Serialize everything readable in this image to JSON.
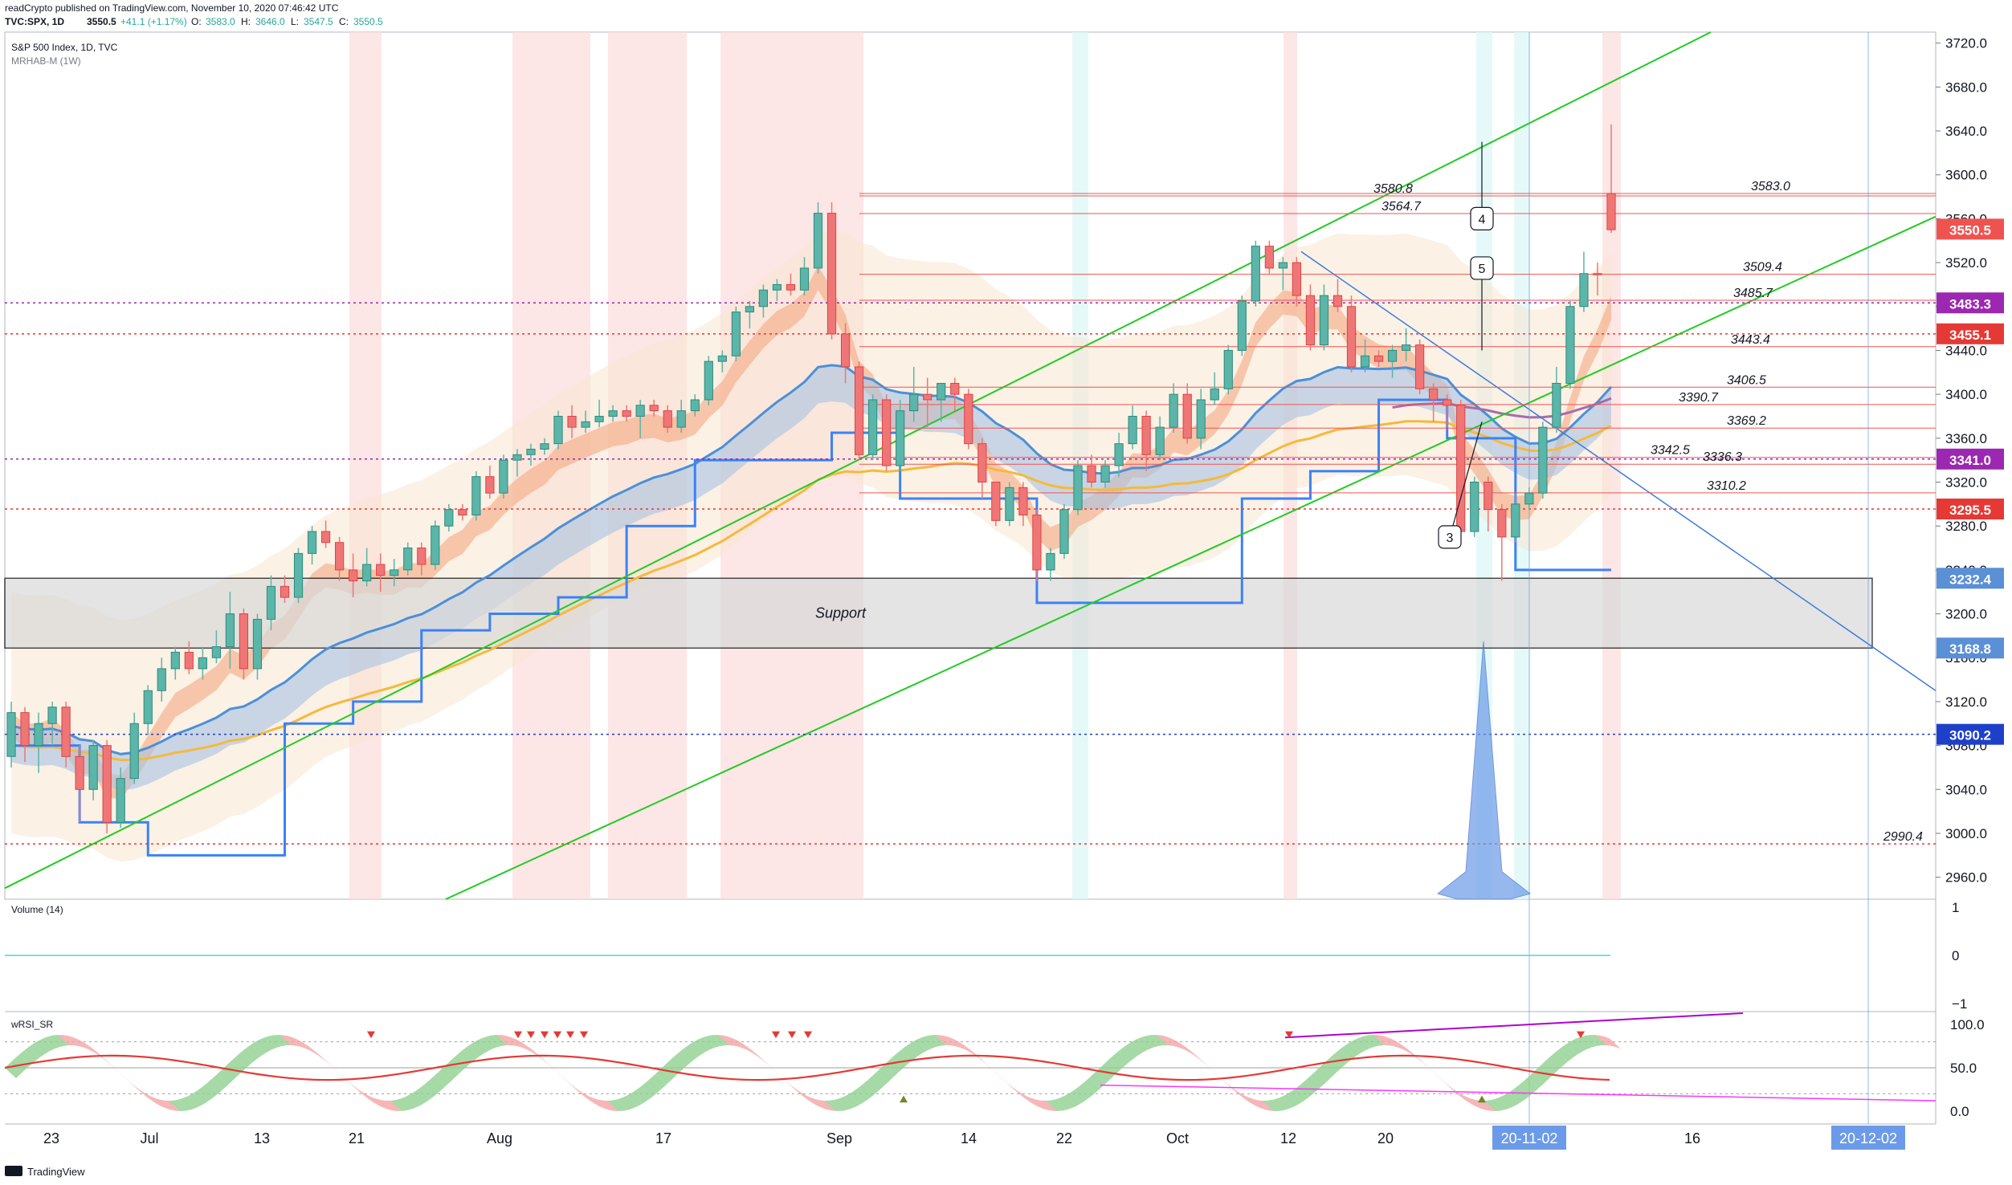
{
  "header": {
    "line1": "readCrypto published on TradingView.com, November 10, 2020 07:46:42 UTC",
    "symbol": "TVC:SPX, 1D",
    "last": "3550.5",
    "change": "+41.1 (+1.17%)",
    "o_label": "O:",
    "o_value": "3583.0",
    "h_label": "H:",
    "h_value": "3646.0",
    "l_label": "L:",
    "l_value": "3547.5",
    "c_label": "C:",
    "c_value": "3550.5"
  },
  "chart_data": {
    "type": "candlestick",
    "title": "S&P 500 Index, 1D, TVC",
    "indicator_label": "MRHAB-M (1W)",
    "ylim": [
      2940,
      3730
    ],
    "y_ticks": [
      "3720.0",
      "3680.0",
      "3640.0",
      "3600.0",
      "3560.0",
      "3520.0",
      "3480.0",
      "3440.0",
      "3400.0",
      "3360.0",
      "3320.0",
      "3280.0",
      "3240.0",
      "3200.0",
      "3160.0",
      "3120.0",
      "3080.0",
      "3040.0",
      "3000.0",
      "2960.0"
    ],
    "x_ticks": [
      "23",
      "Jul",
      "13",
      "21",
      "Aug",
      "17",
      "Sep",
      "14",
      "22",
      "Oct",
      "12",
      "20",
      "20-11-02",
      "16",
      "20-12-02"
    ],
    "candles": [
      {
        "o": 3070,
        "h": 3120,
        "l": 3060,
        "c": 3110
      },
      {
        "o": 3110,
        "h": 3115,
        "l": 3065,
        "c": 3080
      },
      {
        "o": 3080,
        "h": 3110,
        "l": 3055,
        "c": 3100
      },
      {
        "o": 3100,
        "h": 3120,
        "l": 3080,
        "c": 3115
      },
      {
        "o": 3115,
        "h": 3120,
        "l": 3060,
        "c": 3070
      },
      {
        "o": 3070,
        "h": 3080,
        "l": 3010,
        "c": 3040
      },
      {
        "o": 3040,
        "h": 3085,
        "l": 3030,
        "c": 3080
      },
      {
        "o": 3080,
        "h": 3085,
        "l": 3000,
        "c": 3010
      },
      {
        "o": 3010,
        "h": 3060,
        "l": 3005,
        "c": 3050
      },
      {
        "o": 3050,
        "h": 3110,
        "l": 3045,
        "c": 3100
      },
      {
        "o": 3100,
        "h": 3135,
        "l": 3090,
        "c": 3130
      },
      {
        "o": 3130,
        "h": 3160,
        "l": 3120,
        "c": 3150
      },
      {
        "o": 3150,
        "h": 3170,
        "l": 3140,
        "c": 3165
      },
      {
        "o": 3165,
        "h": 3175,
        "l": 3145,
        "c": 3150
      },
      {
        "o": 3150,
        "h": 3170,
        "l": 3140,
        "c": 3160
      },
      {
        "o": 3160,
        "h": 3185,
        "l": 3155,
        "c": 3170
      },
      {
        "o": 3170,
        "h": 3220,
        "l": 3150,
        "c": 3200
      },
      {
        "o": 3200,
        "h": 3205,
        "l": 3140,
        "c": 3150
      },
      {
        "o": 3150,
        "h": 3200,
        "l": 3140,
        "c": 3195
      },
      {
        "o": 3195,
        "h": 3235,
        "l": 3185,
        "c": 3225
      },
      {
        "o": 3225,
        "h": 3235,
        "l": 3210,
        "c": 3215
      },
      {
        "o": 3215,
        "h": 3260,
        "l": 3210,
        "c": 3255
      },
      {
        "o": 3255,
        "h": 3280,
        "l": 3245,
        "c": 3275
      },
      {
        "o": 3275,
        "h": 3285,
        "l": 3260,
        "c": 3265
      },
      {
        "o": 3265,
        "h": 3270,
        "l": 3230,
        "c": 3240
      },
      {
        "o": 3240,
        "h": 3255,
        "l": 3215,
        "c": 3230
      },
      {
        "o": 3230,
        "h": 3260,
        "l": 3225,
        "c": 3245
      },
      {
        "o": 3245,
        "h": 3255,
        "l": 3220,
        "c": 3235
      },
      {
        "o": 3235,
        "h": 3250,
        "l": 3225,
        "c": 3240
      },
      {
        "o": 3240,
        "h": 3265,
        "l": 3235,
        "c": 3260
      },
      {
        "o": 3260,
        "h": 3265,
        "l": 3235,
        "c": 3245
      },
      {
        "o": 3245,
        "h": 3285,
        "l": 3240,
        "c": 3280
      },
      {
        "o": 3280,
        "h": 3300,
        "l": 3275,
        "c": 3295
      },
      {
        "o": 3295,
        "h": 3300,
        "l": 3285,
        "c": 3290
      },
      {
        "o": 3290,
        "h": 3330,
        "l": 3285,
        "c": 3325
      },
      {
        "o": 3325,
        "h": 3335,
        "l": 3305,
        "c": 3310
      },
      {
        "o": 3310,
        "h": 3345,
        "l": 3305,
        "c": 3340
      },
      {
        "o": 3340,
        "h": 3350,
        "l": 3325,
        "c": 3345
      },
      {
        "o": 3345,
        "h": 3355,
        "l": 3335,
        "c": 3350
      },
      {
        "o": 3350,
        "h": 3360,
        "l": 3345,
        "c": 3355
      },
      {
        "o": 3355,
        "h": 3385,
        "l": 3350,
        "c": 3380
      },
      {
        "o": 3380,
        "h": 3390,
        "l": 3360,
        "c": 3370
      },
      {
        "o": 3370,
        "h": 3385,
        "l": 3365,
        "c": 3375
      },
      {
        "o": 3375,
        "h": 3395,
        "l": 3370,
        "c": 3380
      },
      {
        "o": 3380,
        "h": 3390,
        "l": 3375,
        "c": 3385
      },
      {
        "o": 3385,
        "h": 3390,
        "l": 3375,
        "c": 3380
      },
      {
        "o": 3380,
        "h": 3395,
        "l": 3360,
        "c": 3390
      },
      {
        "o": 3390,
        "h": 3395,
        "l": 3380,
        "c": 3385
      },
      {
        "o": 3385,
        "h": 3390,
        "l": 3365,
        "c": 3370
      },
      {
        "o": 3370,
        "h": 3395,
        "l": 3365,
        "c": 3385
      },
      {
        "o": 3385,
        "h": 3400,
        "l": 3380,
        "c": 3395
      },
      {
        "o": 3395,
        "h": 3435,
        "l": 3390,
        "c": 3430
      },
      {
        "o": 3430,
        "h": 3440,
        "l": 3420,
        "c": 3435
      },
      {
        "o": 3435,
        "h": 3480,
        "l": 3430,
        "c": 3475
      },
      {
        "o": 3475,
        "h": 3485,
        "l": 3460,
        "c": 3480
      },
      {
        "o": 3480,
        "h": 3500,
        "l": 3470,
        "c": 3495
      },
      {
        "o": 3495,
        "h": 3505,
        "l": 3485,
        "c": 3500
      },
      {
        "o": 3500,
        "h": 3510,
        "l": 3490,
        "c": 3495
      },
      {
        "o": 3495,
        "h": 3525,
        "l": 3490,
        "c": 3515
      },
      {
        "o": 3515,
        "h": 3575,
        "l": 3510,
        "c": 3565
      },
      {
        "o": 3565,
        "h": 3575,
        "l": 3450,
        "c": 3455
      },
      {
        "o": 3455,
        "h": 3465,
        "l": 3410,
        "c": 3425
      },
      {
        "o": 3425,
        "h": 3430,
        "l": 3340,
        "c": 3345
      },
      {
        "o": 3345,
        "h": 3400,
        "l": 3340,
        "c": 3395
      },
      {
        "o": 3395,
        "h": 3400,
        "l": 3330,
        "c": 3335
      },
      {
        "o": 3335,
        "h": 3395,
        "l": 3330,
        "c": 3385
      },
      {
        "o": 3385,
        "h": 3425,
        "l": 3375,
        "c": 3400
      },
      {
        "o": 3400,
        "h": 3415,
        "l": 3370,
        "c": 3395
      },
      {
        "o": 3395,
        "h": 3410,
        "l": 3375,
        "c": 3410
      },
      {
        "o": 3410,
        "h": 3415,
        "l": 3385,
        "c": 3400
      },
      {
        "o": 3400,
        "h": 3405,
        "l": 3350,
        "c": 3355
      },
      {
        "o": 3355,
        "h": 3360,
        "l": 3305,
        "c": 3320
      },
      {
        "o": 3320,
        "h": 3320,
        "l": 3280,
        "c": 3285
      },
      {
        "o": 3285,
        "h": 3320,
        "l": 3280,
        "c": 3315
      },
      {
        "o": 3315,
        "h": 3320,
        "l": 3280,
        "c": 3290
      },
      {
        "o": 3290,
        "h": 3295,
        "l": 3230,
        "c": 3240
      },
      {
        "o": 3240,
        "h": 3260,
        "l": 3230,
        "c": 3255
      },
      {
        "o": 3255,
        "h": 3300,
        "l": 3250,
        "c": 3295
      },
      {
        "o": 3295,
        "h": 3340,
        "l": 3290,
        "c": 3335
      },
      {
        "o": 3335,
        "h": 3345,
        "l": 3315,
        "c": 3320
      },
      {
        "o": 3320,
        "h": 3340,
        "l": 3315,
        "c": 3335
      },
      {
        "o": 3335,
        "h": 3365,
        "l": 3325,
        "c": 3355
      },
      {
        "o": 3355,
        "h": 3390,
        "l": 3350,
        "c": 3380
      },
      {
        "o": 3380,
        "h": 3385,
        "l": 3330,
        "c": 3345
      },
      {
        "o": 3345,
        "h": 3380,
        "l": 3340,
        "c": 3370
      },
      {
        "o": 3370,
        "h": 3410,
        "l": 3365,
        "c": 3400
      },
      {
        "o": 3400,
        "h": 3410,
        "l": 3355,
        "c": 3360
      },
      {
        "o": 3360,
        "h": 3405,
        "l": 3350,
        "c": 3395
      },
      {
        "o": 3395,
        "h": 3420,
        "l": 3390,
        "c": 3405
      },
      {
        "o": 3405,
        "h": 3445,
        "l": 3400,
        "c": 3440
      },
      {
        "o": 3440,
        "h": 3490,
        "l": 3435,
        "c": 3485
      },
      {
        "o": 3485,
        "h": 3540,
        "l": 3480,
        "c": 3535
      },
      {
        "o": 3535,
        "h": 3540,
        "l": 3510,
        "c": 3515
      },
      {
        "o": 3515,
        "h": 3525,
        "l": 3495,
        "c": 3520
      },
      {
        "o": 3520,
        "h": 3525,
        "l": 3480,
        "c": 3490
      },
      {
        "o": 3490,
        "h": 3500,
        "l": 3440,
        "c": 3445
      },
      {
        "o": 3445,
        "h": 3500,
        "l": 3440,
        "c": 3490
      },
      {
        "o": 3490,
        "h": 3505,
        "l": 3475,
        "c": 3480
      },
      {
        "o": 3480,
        "h": 3490,
        "l": 3420,
        "c": 3425
      },
      {
        "o": 3425,
        "h": 3450,
        "l": 3420,
        "c": 3435
      },
      {
        "o": 3435,
        "h": 3440,
        "l": 3425,
        "c": 3430
      },
      {
        "o": 3430,
        "h": 3445,
        "l": 3415,
        "c": 3440
      },
      {
        "o": 3440,
        "h": 3460,
        "l": 3430,
        "c": 3445
      },
      {
        "o": 3445,
        "h": 3450,
        "l": 3400,
        "c": 3405
      },
      {
        "o": 3405,
        "h": 3410,
        "l": 3375,
        "c": 3395
      },
      {
        "o": 3395,
        "h": 3400,
        "l": 3370,
        "c": 3390
      },
      {
        "o": 3390,
        "h": 3395,
        "l": 3265,
        "c": 3275
      },
      {
        "o": 3275,
        "h": 3325,
        "l": 3270,
        "c": 3320
      },
      {
        "o": 3320,
        "h": 3325,
        "l": 3275,
        "c": 3295
      },
      {
        "o": 3295,
        "h": 3300,
        "l": 3230,
        "c": 3270
      },
      {
        "o": 3270,
        "h": 3310,
        "l": 3265,
        "c": 3300
      },
      {
        "o": 3300,
        "h": 3315,
        "l": 3295,
        "c": 3310
      },
      {
        "o": 3310,
        "h": 3375,
        "l": 3305,
        "c": 3370
      },
      {
        "o": 3370,
        "h": 3425,
        "l": 3365,
        "c": 3410
      },
      {
        "o": 3410,
        "h": 3485,
        "l": 3405,
        "c": 3480
      },
      {
        "o": 3480,
        "h": 3530,
        "l": 3475,
        "c": 3510
      },
      {
        "o": 3510,
        "h": 3520,
        "l": 3490,
        "c": 3509
      },
      {
        "o": 3583,
        "h": 3646,
        "l": 3547,
        "c": 3550
      }
    ],
    "price_labels": [
      {
        "value": 3550.5,
        "text": "3550.5",
        "color": "#ef5350"
      },
      {
        "value": 3483.3,
        "text": "3483.3",
        "color": "#9c27b0"
      },
      {
        "value": 3455.1,
        "text": "3455.1",
        "color": "#e53935"
      },
      {
        "value": 3341.0,
        "text": "3341.0",
        "color": "#9c27b0"
      },
      {
        "value": 3295.5,
        "text": "3295.5",
        "color": "#e53935"
      },
      {
        "value": 3232.4,
        "text": "3232.4",
        "color": "#5b8fd6"
      },
      {
        "value": 3168.8,
        "text": "3168.8",
        "color": "#5b8fd6"
      },
      {
        "value": 3090.2,
        "text": "3090.2",
        "color": "#1e40c9"
      }
    ],
    "level_annotations": [
      {
        "value": 3580.8,
        "text": "3580.8"
      },
      {
        "value": 3564.7,
        "text": "3564.7"
      },
      {
        "value": 3583.0,
        "text": "3583.0"
      },
      {
        "value": 3509.4,
        "text": "3509.4"
      },
      {
        "value": 3485.7,
        "text": "3485.7"
      },
      {
        "value": 3443.4,
        "text": "3443.4"
      },
      {
        "value": 3406.5,
        "text": "3406.5"
      },
      {
        "value": 3390.7,
        "text": "3390.7"
      },
      {
        "value": 3369.2,
        "text": "3369.2"
      },
      {
        "value": 3342.5,
        "text": "3342.5"
      },
      {
        "value": 3336.3,
        "text": "3336.3"
      },
      {
        "value": 3310.2,
        "text": "3310.2"
      },
      {
        "value": 2990.4,
        "text": "2990.4"
      }
    ],
    "support_label": "Support",
    "support_zone": [
      3168.8,
      3232.4
    ],
    "wave_labels": [
      "3",
      "4",
      "5"
    ],
    "volume": {
      "label": "Volume (14)",
      "ticks": [
        "1",
        "0",
        "−1"
      ]
    },
    "rsi": {
      "label": "wRSI_SR",
      "ticks": [
        "100.0",
        "50.0",
        "0.0"
      ]
    }
  },
  "footer": {
    "brand": "TradingView"
  }
}
